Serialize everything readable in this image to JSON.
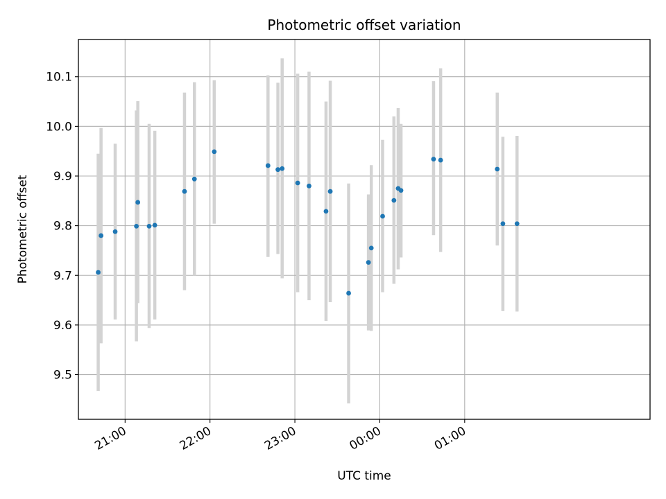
{
  "chart_data": {
    "type": "scatter",
    "title": "Photometric offset variation",
    "xlabel": "UTC time",
    "ylabel": "Photometric offset",
    "x_is_time": true,
    "xlim": [
      "20:27",
      "03:11"
    ],
    "ylim": [
      9.41,
      10.175
    ],
    "xticks": [
      "21:00",
      "22:00",
      "23:00",
      "00:00",
      "01:00"
    ],
    "yticks": [
      "9.5",
      "9.6",
      "9.7",
      "9.8",
      "9.9",
      "10.0",
      "10.1"
    ],
    "grid": true,
    "colors": {
      "point": "#1f77b4",
      "errorbar": "#d3d3d3"
    },
    "series": [
      {
        "points": [
          {
            "t": "20:41",
            "y": 9.706,
            "ylo": 9.467,
            "yhi": 9.945
          },
          {
            "t": "20:43",
            "y": 9.78,
            "ylo": 9.563,
            "yhi": 9.997
          },
          {
            "t": "20:53",
            "y": 9.788,
            "ylo": 9.611,
            "yhi": 9.965
          },
          {
            "t": "21:08",
            "y": 9.799,
            "ylo": 9.567,
            "yhi": 10.032
          },
          {
            "t": "21:09",
            "y": 9.847,
            "ylo": 9.644,
            "yhi": 10.051
          },
          {
            "t": "21:17",
            "y": 9.799,
            "ylo": 9.594,
            "yhi": 10.005
          },
          {
            "t": "21:21",
            "y": 9.801,
            "ylo": 9.611,
            "yhi": 9.991
          },
          {
            "t": "21:42",
            "y": 9.869,
            "ylo": 9.67,
            "yhi": 10.068
          },
          {
            "t": "21:49",
            "y": 9.894,
            "ylo": 9.7,
            "yhi": 10.089
          },
          {
            "t": "22:03",
            "y": 9.949,
            "ylo": 9.804,
            "yhi": 10.093
          },
          {
            "t": "22:41",
            "y": 9.921,
            "ylo": 9.737,
            "yhi": 10.103
          },
          {
            "t": "22:48",
            "y": 9.913,
            "ylo": 9.743,
            "yhi": 10.088
          },
          {
            "t": "22:51",
            "y": 9.915,
            "ylo": 9.694,
            "yhi": 10.137
          },
          {
            "t": "23:02",
            "y": 9.886,
            "ylo": 9.666,
            "yhi": 10.106
          },
          {
            "t": "23:10",
            "y": 9.88,
            "ylo": 9.65,
            "yhi": 10.11
          },
          {
            "t": "23:22",
            "y": 9.829,
            "ylo": 9.608,
            "yhi": 10.05
          },
          {
            "t": "23:25",
            "y": 9.869,
            "ylo": 9.646,
            "yhi": 10.092
          },
          {
            "t": "23:38",
            "y": 9.664,
            "ylo": 9.442,
            "yhi": 9.885
          },
          {
            "t": "23:52",
            "y": 9.726,
            "ylo": 9.589,
            "yhi": 9.863
          },
          {
            "t": "23:54",
            "y": 9.755,
            "ylo": 9.588,
            "yhi": 9.922
          },
          {
            "t": "00:02",
            "y": 9.819,
            "ylo": 9.666,
            "yhi": 9.973
          },
          {
            "t": "00:10",
            "y": 9.851,
            "ylo": 9.683,
            "yhi": 10.02
          },
          {
            "t": "00:13",
            "y": 9.875,
            "ylo": 9.712,
            "yhi": 10.037
          },
          {
            "t": "00:15",
            "y": 9.871,
            "ylo": 9.736,
            "yhi": 10.005
          },
          {
            "t": "00:38",
            "y": 9.934,
            "ylo": 9.781,
            "yhi": 10.091
          },
          {
            "t": "00:43",
            "y": 9.932,
            "ylo": 9.747,
            "yhi": 10.117
          },
          {
            "t": "01:23",
            "y": 9.914,
            "ylo": 9.76,
            "yhi": 10.068
          },
          {
            "t": "01:27",
            "y": 9.804,
            "ylo": 9.628,
            "yhi": 9.979
          },
          {
            "t": "01:37",
            "y": 9.804,
            "ylo": 9.627,
            "yhi": 9.981
          }
        ]
      }
    ]
  }
}
